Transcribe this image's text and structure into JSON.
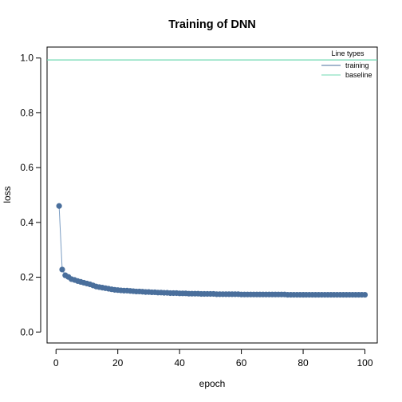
{
  "chart_data": {
    "type": "line",
    "title": "Training of DNN",
    "xlabel": "epoch",
    "ylabel": "loss",
    "xlim": [
      -2.9,
      104
    ],
    "ylim": [
      -0.04,
      1.04
    ],
    "xticks": [
      0,
      20,
      40,
      60,
      80,
      100
    ],
    "yticks": [
      0.0,
      0.2,
      0.4,
      0.6,
      0.8,
      1.0
    ],
    "xtick_labels": [
      "0",
      "20",
      "40",
      "60",
      "80",
      "100"
    ],
    "ytick_labels": [
      "0.0",
      "0.2",
      "0.4",
      "0.6",
      "0.8",
      "1.0"
    ],
    "grid": false,
    "legend": {
      "title": "Line types",
      "placement": "top-right",
      "entries": [
        {
          "label": "training",
          "color": "#4a6f9c"
        },
        {
          "label": "baseline",
          "color": "#6fd9b0"
        }
      ]
    },
    "series": [
      {
        "name": "training",
        "color": "#4a6f9c",
        "marker": "circle",
        "x": [
          1,
          2,
          3,
          4,
          5,
          6,
          7,
          8,
          9,
          10,
          11,
          12,
          13,
          14,
          15,
          16,
          17,
          18,
          19,
          20,
          21,
          22,
          23,
          24,
          25,
          26,
          27,
          28,
          29,
          30,
          31,
          32,
          33,
          34,
          35,
          36,
          37,
          38,
          39,
          40,
          41,
          42,
          43,
          44,
          45,
          46,
          47,
          48,
          49,
          50,
          51,
          52,
          53,
          54,
          55,
          56,
          57,
          58,
          59,
          60,
          61,
          62,
          63,
          64,
          65,
          66,
          67,
          68,
          69,
          70,
          71,
          72,
          73,
          74,
          75,
          76,
          77,
          78,
          79,
          80,
          81,
          82,
          83,
          84,
          85,
          86,
          87,
          88,
          89,
          90,
          91,
          92,
          93,
          94,
          95,
          96,
          97,
          98,
          99,
          100
        ],
        "values": [
          0.46,
          0.228,
          0.207,
          0.201,
          0.193,
          0.19,
          0.186,
          0.183,
          0.18,
          0.177,
          0.174,
          0.17,
          0.166,
          0.164,
          0.162,
          0.16,
          0.158,
          0.156,
          0.154,
          0.153,
          0.152,
          0.151,
          0.151,
          0.15,
          0.149,
          0.148,
          0.148,
          0.147,
          0.146,
          0.146,
          0.145,
          0.145,
          0.144,
          0.144,
          0.143,
          0.143,
          0.142,
          0.142,
          0.142,
          0.141,
          0.141,
          0.141,
          0.14,
          0.14,
          0.14,
          0.14,
          0.139,
          0.139,
          0.139,
          0.139,
          0.139,
          0.138,
          0.138,
          0.138,
          0.138,
          0.138,
          0.138,
          0.138,
          0.138,
          0.137,
          0.137,
          0.137,
          0.137,
          0.137,
          0.137,
          0.137,
          0.137,
          0.137,
          0.137,
          0.137,
          0.137,
          0.137,
          0.137,
          0.137,
          0.136,
          0.136,
          0.136,
          0.136,
          0.136,
          0.136,
          0.136,
          0.136,
          0.136,
          0.136,
          0.136,
          0.136,
          0.136,
          0.136,
          0.136,
          0.136,
          0.136,
          0.136,
          0.136,
          0.136,
          0.136,
          0.136,
          0.136,
          0.136,
          0.136,
          0.136
        ]
      },
      {
        "name": "baseline",
        "color": "#6fd9b0",
        "marker": "none",
        "hline": 0.993
      }
    ]
  }
}
